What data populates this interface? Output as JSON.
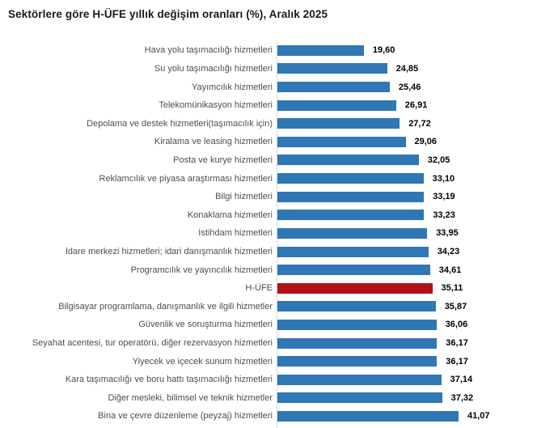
{
  "title": "Sektörlere göre H-ÜFE yıllık değişim oranları (%), Aralık 2025",
  "colors": {
    "bar": "#2f77b5",
    "highlight_bar": "#b11217",
    "axis_line": "#d9d9d9",
    "category_label": "#4d4d4d",
    "value_label": "#000000"
  },
  "chart_data": {
    "type": "bar",
    "orientation": "horizontal",
    "title": "Sektörlere göre H-ÜFE yıllık değişim oranları (%), Aralık 2025",
    "xlabel": "",
    "ylabel": "",
    "xlim": [
      0,
      45
    ],
    "grid": false,
    "legend": false,
    "highlight_category": "H-ÜFE",
    "highlight_index": 13,
    "categories": [
      "Hava yolu taşımacılığı hizmetleri",
      "Su yolu taşımacılığı hizmetleri",
      "Yayımcılık hizmetleri",
      "Telekomünikasyon hizmetleri",
      "Depolama ve destek hizmetleri(taşımacılık için)",
      "Kiralama ve leasing hizmetleri",
      "Posta ve kurye hizmetleri",
      "Reklamcılık ve piyasa araştırması hizmetleri",
      "Bilgi hizmetleri",
      "Konaklama hizmetleri",
      "İstihdam hizmetleri",
      "İdare merkezi hizmetleri; idari danışmanlık hizmetleri",
      "Programcılık ve yayıncılık hizmetleri",
      "H-ÜFE",
      "Bilgisayar programlama, danışmanlık ve ilgili hizmetler",
      "Güvenlik ve soruşturma hizmetleri",
      "Seyahat acentesi, tur operatörü, diğer rezervasyon hizmetleri",
      "Yiyecek ve içecek sunum hizmetleri",
      "Kara taşımacılığı ve boru hattı taşımacılığı hizmetleri",
      "Diğer mesleki, bilimsel ve teknik hizmetler",
      "Bina ve çevre düzenleme (peyzaj) hizmetleri"
    ],
    "values": [
      19.6,
      24.85,
      25.46,
      26.91,
      27.72,
      29.06,
      32.05,
      33.1,
      33.19,
      33.23,
      33.95,
      34.23,
      34.61,
      35.11,
      35.87,
      36.06,
      36.17,
      36.17,
      37.14,
      37.32,
      41.07
    ],
    "value_labels": [
      "19,60",
      "24,85",
      "25,46",
      "26,91",
      "27,72",
      "29,06",
      "32,05",
      "33,10",
      "33,19",
      "33,23",
      "33,95",
      "34,23",
      "34,61",
      "35,11",
      "35,87",
      "36,06",
      "36,17",
      "36,17",
      "37,14",
      "37,32",
      "41,07"
    ]
  }
}
